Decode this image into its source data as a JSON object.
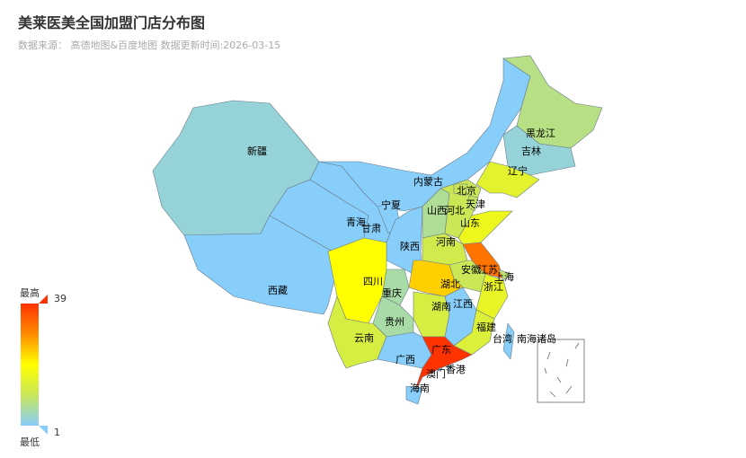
{
  "title": "美莱医美全国加盟门店分布图",
  "subtitle": "数据来源： 高德地图&百度地图 数据更新时间:2026-03-15",
  "visual_map": {
    "high_label": "最高",
    "low_label": "最低",
    "max": 39,
    "min": 1,
    "colors": [
      "#87cefa",
      "#c8e65a",
      "#ffff00",
      "#ff8c00",
      "#ff3300"
    ]
  },
  "inset_label": "南海诸岛",
  "provinces": [
    {
      "name": "新疆",
      "value": 3
    },
    {
      "name": "西藏",
      "value": 1
    },
    {
      "name": "青海",
      "value": 1
    },
    {
      "name": "甘肃",
      "value": 1
    },
    {
      "name": "内蒙古",
      "value": 1
    },
    {
      "name": "黑龙江",
      "value": 8
    },
    {
      "name": "吉林",
      "value": 3
    },
    {
      "name": "辽宁",
      "value": 15
    },
    {
      "name": "宁夏",
      "value": 1
    },
    {
      "name": "陕西",
      "value": 1
    },
    {
      "name": "山西",
      "value": 7
    },
    {
      "name": "河北",
      "value": 11
    },
    {
      "name": "北京",
      "value": 11
    },
    {
      "name": "天津",
      "value": 10
    },
    {
      "name": "山东",
      "value": 17
    },
    {
      "name": "河南",
      "value": 12
    },
    {
      "name": "江苏",
      "value": 32
    },
    {
      "name": "上海",
      "value": 9
    },
    {
      "name": "安徽",
      "value": 11
    },
    {
      "name": "浙江",
      "value": 16
    },
    {
      "name": "湖北",
      "value": 24
    },
    {
      "name": "重庆",
      "value": 6
    },
    {
      "name": "四川",
      "value": 20
    },
    {
      "name": "湖南",
      "value": 13
    },
    {
      "name": "江西",
      "value": 1
    },
    {
      "name": "福建",
      "value": 14
    },
    {
      "name": "贵州",
      "value": 6
    },
    {
      "name": "云南",
      "value": 13
    },
    {
      "name": "广西",
      "value": 1
    },
    {
      "name": "广东",
      "value": 39
    },
    {
      "name": "海南",
      "value": 1
    },
    {
      "name": "台湾",
      "value": 1
    },
    {
      "name": "香港",
      "value": 1
    },
    {
      "name": "澳门",
      "value": 1
    }
  ]
}
